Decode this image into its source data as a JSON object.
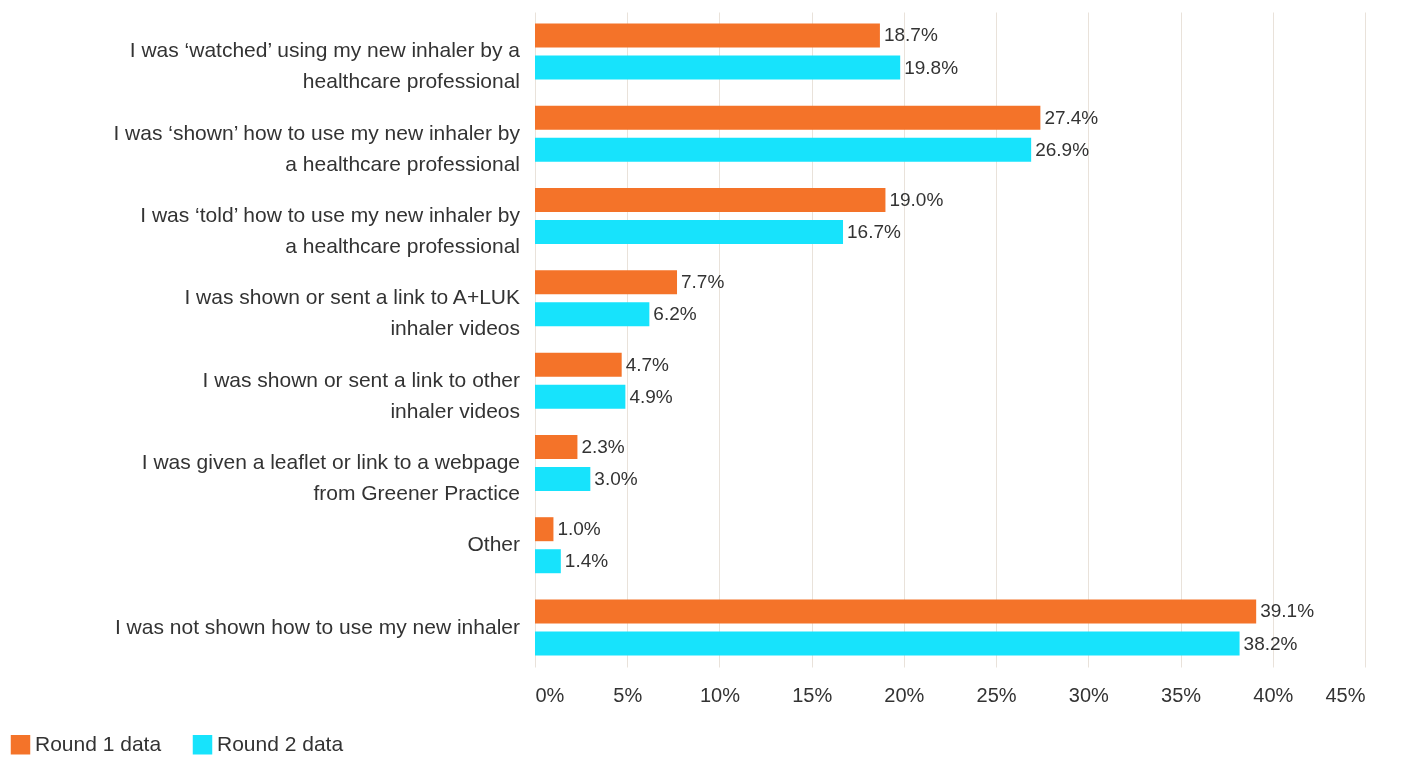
{
  "chart_data": {
    "type": "bar",
    "orientation": "horizontal",
    "categories": [
      "I was ‘watched’ using my new inhaler by a healthcare professional",
      "I was ‘shown’ how to use my new inhaler by a healthcare professional",
      "I was ‘told’ how to use my new inhaler by a healthcare professional",
      "I was shown or sent a link to A+LUK inhaler videos",
      "I was shown or sent a link to other inhaler videos",
      "I was given a leaflet or link to a webpage from Greener Practice",
      "Other",
      "I was not shown how to use my new inhaler"
    ],
    "series": [
      {
        "name": "Round 1 data",
        "color": "#f47329",
        "values": [
          18.7,
          27.4,
          19.0,
          7.7,
          4.7,
          2.3,
          1.0,
          39.1
        ],
        "value_labels": [
          "18.7%",
          "27.4%",
          "19.0%",
          "7.7%",
          "4.7%",
          "2.3%",
          "1.0%",
          "39.1%"
        ]
      },
      {
        "name": "Round 2 data",
        "color": "#17e3fc",
        "values": [
          19.8,
          26.9,
          16.7,
          6.2,
          4.9,
          3.0,
          1.4,
          38.2
        ],
        "value_labels": [
          "19.8%",
          "26.9%",
          "16.7%",
          "6.2%",
          "4.9%",
          "3.0%",
          "1.4%",
          "38.2%"
        ]
      }
    ],
    "xlim": [
      0,
      45
    ],
    "xticks": [
      {
        "value": 0,
        "label": "0%"
      },
      {
        "value": 5,
        "label": "5%"
      },
      {
        "value": 10,
        "label": "10%"
      },
      {
        "value": 15,
        "label": "15%"
      },
      {
        "value": 20,
        "label": "20%"
      },
      {
        "value": 25,
        "label": "25%"
      },
      {
        "value": 30,
        "label": "30%"
      },
      {
        "value": 35,
        "label": "35%"
      },
      {
        "value": 40,
        "label": "40%"
      },
      {
        "value": 45,
        "label": "45%"
      }
    ],
    "grid": "x",
    "legend": "bottom left"
  }
}
